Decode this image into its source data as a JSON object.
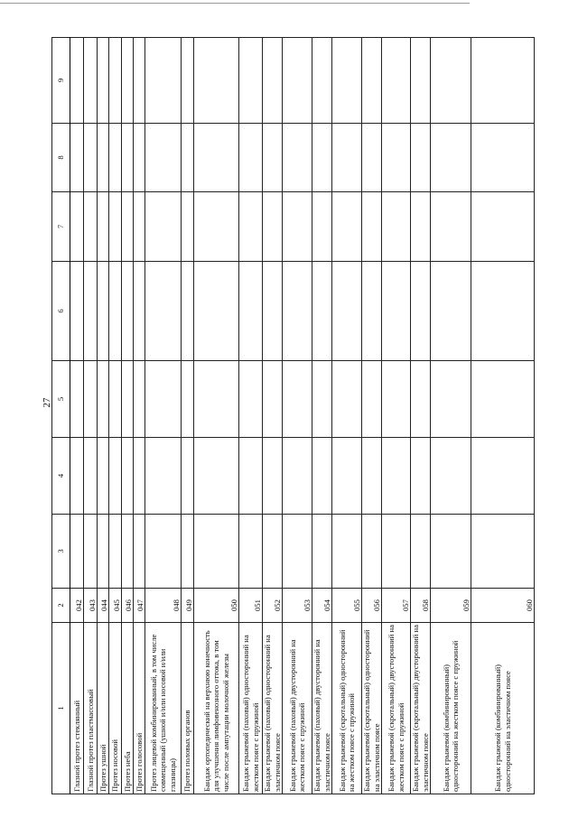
{
  "page_number": "27",
  "table": {
    "headers": [
      "1",
      "2",
      "3",
      "4",
      "5",
      "6",
      "7",
      "8",
      "9"
    ],
    "rows": [
      {
        "name": "Глазной протез стеклянный",
        "code": "042"
      },
      {
        "name": "Глазной протез пластмассовый",
        "code": "043"
      },
      {
        "name": "Протез ушной",
        "code": "044"
      },
      {
        "name": "Протез носовой",
        "code": "045"
      },
      {
        "name": "Протез неба",
        "code": "046"
      },
      {
        "name": "Протез голосовой",
        "code": "047"
      },
      {
        "name": "Протез лицевой комбинированный, в том числе совмещенный (ушной и/или носовой и/или глазницы)",
        "code": "048"
      },
      {
        "name": "Протез половых органов",
        "code": "049"
      },
      {
        "name": "Бандаж ортопедический на верхнюю конечность для улучшения лимфовенозного оттока, в том числе после ампутации молочной железы",
        "code": "050"
      },
      {
        "name": "Бандаж грыжевой (паховый) односторонний на жестком поясе с пружиной",
        "code": "051"
      },
      {
        "name": "Бандаж грыжевой (паховый) односторонний на эластичном поясе",
        "code": "052"
      },
      {
        "name": "Бандаж грыжевой (паховый) двусторонний на жестком поясе с пружиной",
        "code": "053"
      },
      {
        "name": "Бандаж грыжевой (паховый) двусторонний на эластичном поясе",
        "code": "054"
      },
      {
        "name": "Бандаж грыжевой (скротальный) односторонний на жестком поясе с пружиной",
        "code": "055"
      },
      {
        "name": "Бандаж грыжевой (скротальный) односторонний на эластичном поясе",
        "code": "056"
      },
      {
        "name": "Бандаж грыжевой (скротальный) двусторонний на жестком поясе с пружиной",
        "code": "057"
      },
      {
        "name": "Бандаж грыжевой (скротальный) двусторонний на эластичном поясе",
        "code": "058"
      },
      {
        "name": "Бандаж грыжевой (комбинированный) односторонний на жестком поясе с пружиной",
        "code": "059"
      },
      {
        "name": "Бандаж грыжевой (комбинированный) односторонний на эластичном поясе",
        "code": "060"
      }
    ]
  }
}
